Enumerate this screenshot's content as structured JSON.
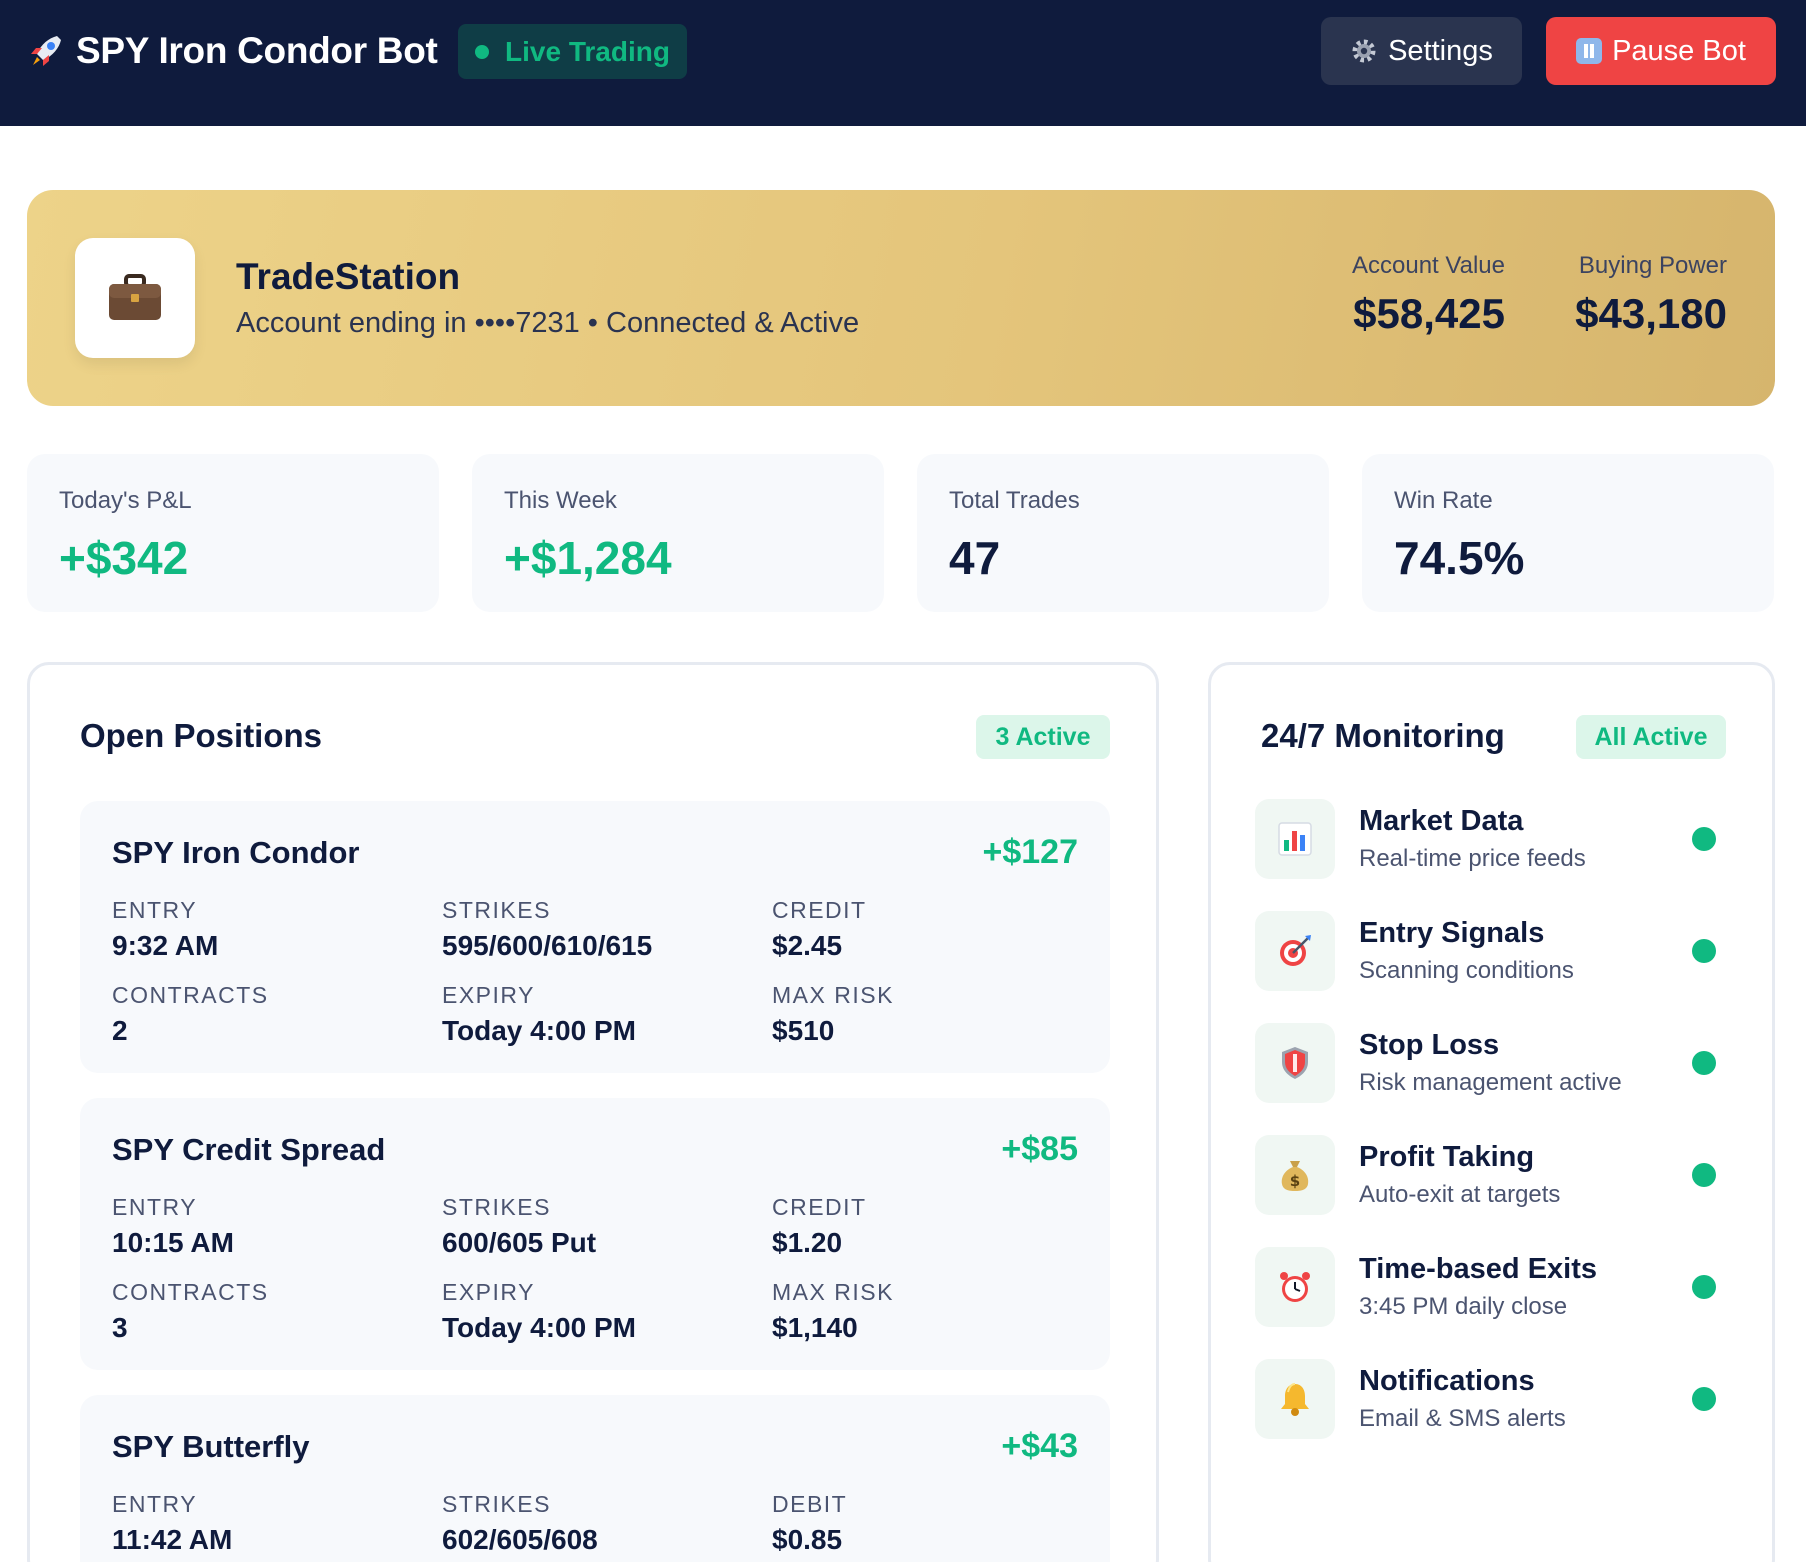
{
  "header": {
    "title": "SPY Iron Condor Bot",
    "status": "Live Trading",
    "settings_label": "Settings",
    "pause_label": "Pause Bot"
  },
  "broker": {
    "name": "TradeStation",
    "subtitle": "Account ending in ••••7231 • Connected & Active",
    "account_value_label": "Account Value",
    "account_value": "$58,425",
    "buying_power_label": "Buying Power",
    "buying_power": "$43,180"
  },
  "stats": [
    {
      "label": "Today's P&L",
      "value": "+$342"
    },
    {
      "label": "This Week",
      "value": "+$1,284"
    },
    {
      "label": "Total Trades",
      "value": "47"
    },
    {
      "label": "Win Rate",
      "value": "74.5%"
    }
  ],
  "positions": {
    "title": "Open Positions",
    "badge": "3 Active",
    "items": [
      {
        "name": "SPY Iron Condor",
        "pnl": "+$127",
        "entry_label": "ENTRY",
        "entry": "9:32 AM",
        "strikes_label": "STRIKES",
        "strikes": "595/600/610/615",
        "credit_label": "CREDIT",
        "credit": "$2.45",
        "contracts_label": "CONTRACTS",
        "contracts": "2",
        "expiry_label": "EXPIRY",
        "expiry": "Today 4:00 PM",
        "maxrisk_label": "MAX RISK",
        "maxrisk": "$510"
      },
      {
        "name": "SPY Credit Spread",
        "pnl": "+$85",
        "entry_label": "ENTRY",
        "entry": "10:15 AM",
        "strikes_label": "STRIKES",
        "strikes": "600/605 Put",
        "credit_label": "CREDIT",
        "credit": "$1.20",
        "contracts_label": "CONTRACTS",
        "contracts": "3",
        "expiry_label": "EXPIRY",
        "expiry": "Today 4:00 PM",
        "maxrisk_label": "MAX RISK",
        "maxrisk": "$1,140"
      },
      {
        "name": "SPY Butterfly",
        "pnl": "+$43",
        "entry_label": "ENTRY",
        "entry": "11:42 AM",
        "strikes_label": "STRIKES",
        "strikes": "602/605/608",
        "credit_label": "DEBIT",
        "credit": "$0.85"
      }
    ]
  },
  "monitoring": {
    "title": "24/7 Monitoring",
    "badge": "All Active",
    "items": [
      {
        "title": "Market Data",
        "subtitle": "Real-time price feeds",
        "icon": "bar-chart-icon"
      },
      {
        "title": "Entry Signals",
        "subtitle": "Scanning conditions",
        "icon": "target-icon"
      },
      {
        "title": "Stop Loss",
        "subtitle": "Risk management active",
        "icon": "shield-icon"
      },
      {
        "title": "Profit Taking",
        "subtitle": "Auto-exit at targets",
        "icon": "money-bag-icon"
      },
      {
        "title": "Time-based Exits",
        "subtitle": "3:45 PM daily close",
        "icon": "alarm-clock-icon"
      },
      {
        "title": "Notifications",
        "subtitle": "Email & SMS alerts",
        "icon": "bell-icon"
      }
    ]
  },
  "colors": {
    "header_bg": "#0f1b3d",
    "accent_green": "#10b981",
    "pause_red": "#ef4444",
    "broker_gold": "#e4c57b"
  }
}
